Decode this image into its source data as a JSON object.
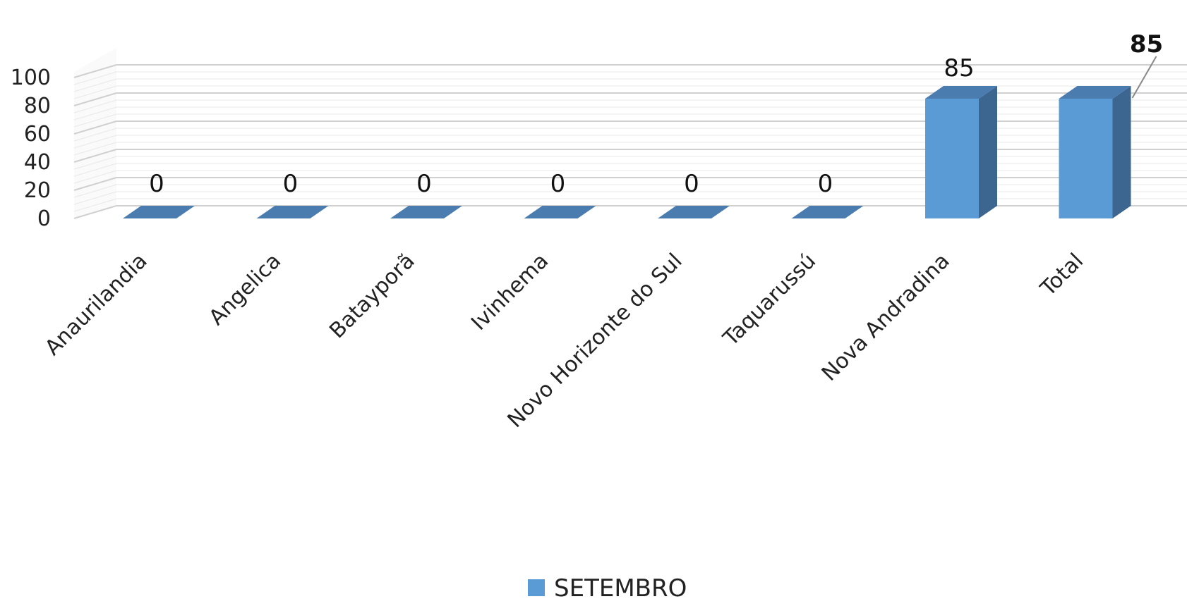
{
  "chart_data": {
    "type": "bar",
    "title": "",
    "categories": [
      "Anaurilandia",
      "Angelica",
      "Batayporã",
      "Ivinhema",
      "Novo Horizonte do Sul",
      "Taquarussú",
      "Nova Andradina",
      "Total"
    ],
    "series": [
      {
        "name": "SETEMBRO",
        "values": [
          0,
          0,
          0,
          0,
          0,
          0,
          85,
          85
        ],
        "color": "#5B9BD5"
      }
    ],
    "data_labels": [
      "0",
      "0",
      "0",
      "0",
      "0",
      "0",
      "85",
      "85"
    ],
    "y_ticks": [
      "0",
      "20",
      "40",
      "60",
      "80",
      "100"
    ],
    "ylim": [
      0,
      100
    ],
    "grid": true,
    "legend_position": "bottom",
    "style": "3d-column"
  }
}
